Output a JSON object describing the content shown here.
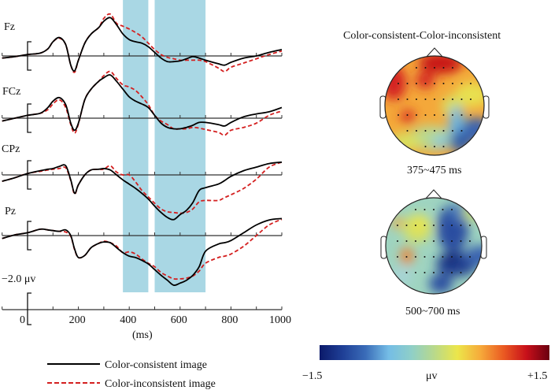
{
  "chart_data": {
    "type": "line",
    "xlabel": "(ms)",
    "xlim": [
      -100,
      1000
    ],
    "x_ticks": [
      "0",
      "200",
      "400",
      "600",
      "800",
      "1000"
    ],
    "x_tick_values": [
      0,
      200,
      400,
      600,
      800,
      1000
    ],
    "scale_label": "−2.0 μv",
    "y_unit": "μV (negative plotted up)",
    "shaded_windows_ms": [
      [
        375,
        475
      ],
      [
        500,
        700
      ]
    ],
    "colors": {
      "consistent": "#000000",
      "inconsistent": "#d42020",
      "shade": "#a9d7e4"
    },
    "legend": [
      {
        "name": "Color-consistent image",
        "style": "solid"
      },
      {
        "name": "Color-inconsistent image",
        "style": "dashed"
      }
    ],
    "x": [
      -100,
      -50,
      0,
      50,
      80,
      100,
      125,
      150,
      170,
      185,
      200,
      225,
      250,
      280,
      300,
      325,
      350,
      375,
      400,
      425,
      450,
      475,
      500,
      525,
      550,
      575,
      600,
      625,
      650,
      675,
      700,
      750,
      775,
      800,
      850,
      900,
      950,
      1000
    ],
    "channels": [
      {
        "name": "Fz",
        "series": [
          {
            "name": "Color-consistent image",
            "values": [
              0.3,
              0.1,
              -0.2,
              -0.4,
              -1.0,
              -2.0,
              -2.6,
              -1.6,
              1.3,
              2.1,
              0.6,
              -1.8,
              -3.1,
              -4.0,
              -4.9,
              -5.4,
              -4.4,
              -3.1,
              -2.3,
              -2.0,
              -1.8,
              -1.3,
              -0.5,
              0.3,
              0.8,
              0.8,
              0.7,
              0.4,
              0.1,
              0.3,
              0.6,
              1.1,
              1.3,
              0.9,
              0.3,
              0.0,
              -0.5,
              -0.9
            ]
          },
          {
            "name": "Color-inconsistent image",
            "values": [
              0.3,
              0.1,
              -0.2,
              -0.4,
              -1.0,
              -2.0,
              -2.5,
              -1.6,
              1.3,
              2.3,
              0.6,
              -1.8,
              -3.1,
              -4.0,
              -5.3,
              -5.9,
              -4.6,
              -4.2,
              -3.8,
              -3.3,
              -2.7,
              -1.8,
              -0.9,
              -0.2,
              0.2,
              0.4,
              0.6,
              0.6,
              0.6,
              0.6,
              0.8,
              1.7,
              2.2,
              1.6,
              1.0,
              0.4,
              -0.2,
              -0.7
            ]
          }
        ]
      },
      {
        "name": "FCz",
        "series": [
          {
            "name": "Color-consistent image",
            "values": [
              0.4,
              0.0,
              -0.4,
              -0.7,
              -1.5,
              -2.4,
              -2.9,
              -1.9,
              0.7,
              1.7,
              0.7,
              -2.6,
              -4.1,
              -5.2,
              -5.7,
              -6.1,
              -5.2,
              -4.1,
              -3.0,
              -2.4,
              -2.0,
              -1.5,
              -0.4,
              0.7,
              1.3,
              1.5,
              1.5,
              1.3,
              1.0,
              0.6,
              0.6,
              0.9,
              1.1,
              0.6,
              -0.2,
              -0.6,
              -0.9,
              -1.5
            ]
          },
          {
            "name": "Color-inconsistent image",
            "values": [
              0.4,
              0.0,
              -0.4,
              -0.7,
              -1.2,
              -2.0,
              -2.6,
              -1.5,
              0.9,
              2.1,
              0.8,
              -2.6,
              -4.1,
              -5.2,
              -6.0,
              -6.6,
              -5.6,
              -4.7,
              -4.4,
              -3.9,
              -3.0,
              -1.9,
              -0.4,
              0.4,
              0.9,
              1.5,
              1.5,
              1.5,
              1.3,
              1.4,
              1.6,
              2.0,
              2.4,
              1.7,
              1.3,
              0.7,
              -0.4,
              -1.0
            ]
          }
        ]
      },
      {
        "name": "CPz",
        "series": [
          {
            "name": "Color-consistent image",
            "values": [
              0.9,
              0.4,
              -0.2,
              -0.6,
              -0.8,
              -0.9,
              -1.2,
              -1.3,
              0.7,
              2.6,
              1.4,
              0.0,
              -0.7,
              -0.8,
              -0.9,
              -0.7,
              0.0,
              0.7,
              1.3,
              1.9,
              2.6,
              3.4,
              4.4,
              5.3,
              6.0,
              6.3,
              5.6,
              5.0,
              3.9,
              2.2,
              1.8,
              1.3,
              0.8,
              0.2,
              -0.6,
              -1.1,
              -1.6,
              -1.8
            ]
          },
          {
            "name": "Color-inconsistent image",
            "values": [
              0.9,
              0.4,
              -0.2,
              -0.5,
              -0.7,
              -0.8,
              -0.9,
              -1.0,
              0.8,
              2.7,
              1.4,
              0.0,
              -0.7,
              -0.8,
              -0.8,
              -1.3,
              -0.4,
              0.0,
              0.0,
              1.0,
              2.2,
              3.1,
              4.0,
              4.8,
              5.2,
              5.3,
              5.4,
              5.3,
              4.8,
              3.8,
              3.6,
              3.6,
              3.2,
              2.8,
              1.9,
              0.6,
              -1.1,
              -1.8
            ]
          }
        ]
      },
      {
        "name": "Pz",
        "series": [
          {
            "name": "Color-consistent image",
            "values": [
              0.4,
              -0.1,
              -0.4,
              -0.9,
              -0.8,
              -0.7,
              -0.6,
              -0.8,
              0.0,
              1.9,
              3.1,
              2.8,
              1.7,
              1.1,
              0.9,
              1.0,
              1.7,
              2.4,
              2.9,
              3.1,
              3.5,
              4.0,
              4.8,
              5.6,
              6.3,
              7.0,
              6.7,
              6.3,
              5.6,
              4.4,
              2.2,
              1.2,
              1.0,
              0.7,
              -0.4,
              -1.5,
              -2.2,
              -2.4
            ]
          },
          {
            "name": "Color-inconsistent image",
            "values": [
              0.4,
              -0.1,
              -0.4,
              -0.9,
              -0.8,
              -0.7,
              -0.6,
              -0.5,
              0.1,
              2.0,
              3.1,
              2.8,
              1.7,
              1.1,
              0.8,
              1.0,
              1.5,
              2.4,
              2.3,
              2.6,
              3.3,
              3.9,
              4.4,
              5.2,
              5.7,
              6.1,
              6.1,
              6.0,
              5.7,
              5.0,
              3.9,
              3.1,
              2.9,
              2.6,
              1.5,
              0.0,
              -1.5,
              -2.3
            ]
          }
        ]
      }
    ],
    "topomaps": {
      "title": "Color-consistent-Color-inconsistent",
      "maps": [
        {
          "label": "375~475 ms"
        },
        {
          "label": "500~700 ms"
        }
      ],
      "colorbar": {
        "min": -1.5,
        "max": 1.5,
        "min_label": "−1.5",
        "max_label": "+1.5",
        "unit": "μv",
        "colors": [
          "#0b1a6a",
          "#1f3f96",
          "#3a6cb8",
          "#74bde6",
          "#8fcfc8",
          "#b9d98a",
          "#ece64a",
          "#f6aa3a",
          "#ea5a22",
          "#c8101a",
          "#6a0010"
        ]
      }
    }
  }
}
